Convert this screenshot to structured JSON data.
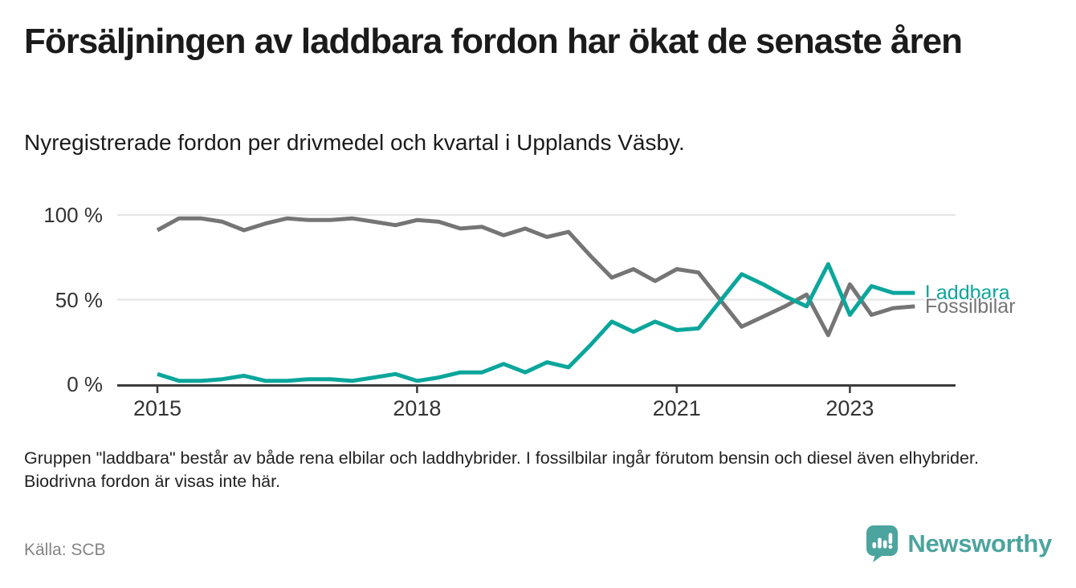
{
  "colors": {
    "accent_teal": "#0ba69b",
    "fossil_gray": "#757575",
    "grid": "#e4e4e4",
    "axis": "#3b3b3b",
    "title_text": "#1b1b1b",
    "muted_text": "#848484",
    "brand_teal": "#4ca49e"
  },
  "chart_data": {
    "type": "line",
    "title": "Försäljningen av laddbara fordon har ökat de senaste åren",
    "subtitle": "Nyregistrerade fordon per drivmedel och kvartal i Upplands Väsby.",
    "x": [
      "2015 Q1",
      "2015 Q2",
      "2015 Q3",
      "2015 Q4",
      "2016 Q1",
      "2016 Q2",
      "2016 Q3",
      "2016 Q4",
      "2017 Q1",
      "2017 Q2",
      "2017 Q3",
      "2017 Q4",
      "2018 Q1",
      "2018 Q2",
      "2018 Q3",
      "2018 Q4",
      "2019 Q1",
      "2019 Q2",
      "2019 Q3",
      "2019 Q4",
      "2020 Q1",
      "2020 Q2",
      "2020 Q3",
      "2020 Q4",
      "2021 Q1",
      "2021 Q2",
      "2021 Q3",
      "2021 Q4",
      "2022 Q1",
      "2022 Q2",
      "2022 Q3",
      "2022 Q4",
      "2023 Q1",
      "2023 Q2",
      "2023 Q3",
      "2023 Q4"
    ],
    "series": [
      {
        "name": "Laddbara",
        "color": "#0ba69b",
        "values": [
          6,
          2,
          2,
          3,
          5,
          2,
          2,
          3,
          3,
          2,
          4,
          6,
          2,
          4,
          7,
          7,
          12,
          7,
          13,
          10,
          23,
          37,
          31,
          37,
          32,
          33,
          49,
          65,
          59,
          52,
          46,
          71,
          41,
          58,
          54,
          54
        ]
      },
      {
        "name": "Fossilbilar",
        "color": "#757575",
        "values": [
          91,
          98,
          98,
          96,
          91,
          95,
          98,
          97,
          97,
          98,
          96,
          94,
          97,
          96,
          92,
          93,
          88,
          92,
          87,
          90,
          76,
          63,
          68,
          61,
          68,
          66,
          50,
          34,
          40,
          46,
          53,
          29,
          59,
          41,
          45,
          46
        ]
      }
    ],
    "y_axis": {
      "unit": "%",
      "range": [
        0,
        100
      ],
      "ticks": [
        {
          "label": "100 %",
          "value": 100
        },
        {
          "label": "50 %",
          "value": 50
        },
        {
          "label": "0 %",
          "value": 0
        }
      ]
    },
    "x_axis": {
      "ticks": [
        {
          "label": "2015",
          "index": 0
        },
        {
          "label": "2018",
          "index": 12
        },
        {
          "label": "2021",
          "index": 24
        },
        {
          "label": "2023",
          "index": 32
        }
      ]
    },
    "grid": "horizontal-only",
    "legend_position": "end-of-lines-right"
  },
  "footer": {
    "note": "Gruppen \"laddbara\" består av både rena elbilar och laddhybrider. I fossilbilar ingår förutom bensin och diesel även elhybrider. Biodrivna fordon är visas inte här.",
    "source": "Källa: SCB",
    "brand": "Newsworthy"
  }
}
